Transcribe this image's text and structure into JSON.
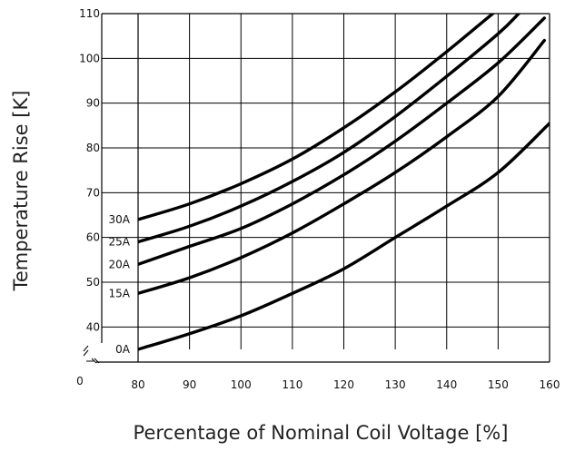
{
  "chart_data": {
    "type": "line",
    "xlabel": "Percentage of Nominal Coil Voltage [%]",
    "ylabel": "Temperature Rise [K]",
    "xlim": [
      80,
      160
    ],
    "ylim": [
      35,
      110
    ],
    "x_ticks": [
      "80",
      "90",
      "100",
      "110",
      "120",
      "130",
      "140",
      "150",
      "160"
    ],
    "y_ticks": [
      "40",
      "50",
      "60",
      "70",
      "80",
      "90",
      "100",
      "110"
    ],
    "origin_label": "0",
    "axis_break": true,
    "grid": true,
    "series": [
      {
        "name": "30A",
        "x": [
          80,
          90,
          100,
          110,
          120,
          130,
          140,
          150
        ],
        "y": [
          64,
          67.5,
          72,
          77.5,
          84.5,
          92.5,
          101.5,
          111
        ]
      },
      {
        "name": "25A",
        "x": [
          80,
          90,
          100,
          110,
          120,
          130,
          140,
          150,
          154
        ],
        "y": [
          59,
          62.5,
          67,
          72.5,
          79,
          87,
          96,
          105.5,
          110
        ]
      },
      {
        "name": "20A",
        "x": [
          80,
          90,
          100,
          110,
          120,
          130,
          140,
          150,
          159
        ],
        "y": [
          54,
          58,
          62,
          67.5,
          74,
          81.5,
          90,
          99,
          109
        ]
      },
      {
        "name": "15A",
        "x": [
          80,
          90,
          100,
          110,
          120,
          130,
          140,
          150,
          159
        ],
        "y": [
          47.5,
          51,
          55.5,
          61,
          67.5,
          74.5,
          82.5,
          91.5,
          104
        ]
      },
      {
        "name": "0A",
        "x": [
          80,
          90,
          100,
          110,
          120,
          130,
          140,
          150,
          160
        ],
        "y": [
          35,
          38.5,
          42.5,
          47.5,
          53,
          60,
          67,
          74.5,
          85.5
        ]
      }
    ]
  }
}
